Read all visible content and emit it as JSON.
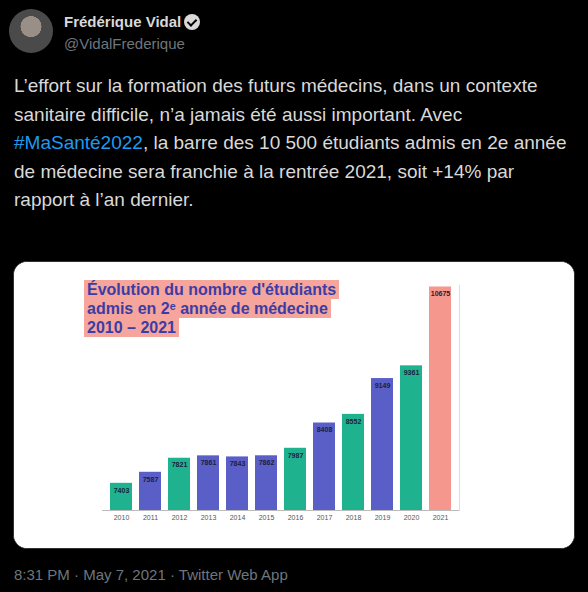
{
  "tweet": {
    "author": "Frédérique Vidal",
    "handle": "@VidalFrederique",
    "text_before": "L’effort sur la formation des futurs médecins, dans un contexte sanitaire difficile, n’a jamais été aussi important. Avec ",
    "hashtag": "#MaSanté2022",
    "text_after": ", la barre des 10 500 étudiants admis en 2e année de médecine sera franchie à la rentrée 2021, soit +14% par rapport à l’an dernier.",
    "footer": "8:31 PM · May 7, 2021 · Twitter Web App"
  },
  "chart_data": {
    "type": "bar",
    "title": "Évolution du nombre d'étudiants\nadmis en 2ᵉ année de médecine\n2010 – 2021",
    "categories": [
      "2010",
      "2011",
      "2012",
      "2013",
      "2014",
      "2015",
      "2016",
      "2017",
      "2018",
      "2019",
      "2020",
      "2021"
    ],
    "values": [
      7403,
      7587,
      7821,
      7861,
      7843,
      7862,
      7987,
      8408,
      8552,
      9149,
      9361,
      10675
    ],
    "colors": [
      "#1fb28e",
      "#5a5fc8",
      "#1fb28e",
      "#5a5fc8",
      "#5a5fc8",
      "#5a5fc8",
      "#1fb28e",
      "#5a5fc8",
      "#1fb28e",
      "#5a5fc8",
      "#1fb28e",
      "#f5978d"
    ],
    "ylim": [
      6950,
      10700
    ],
    "yticks": [],
    "data_labels": true,
    "tick_labels": "x"
  }
}
